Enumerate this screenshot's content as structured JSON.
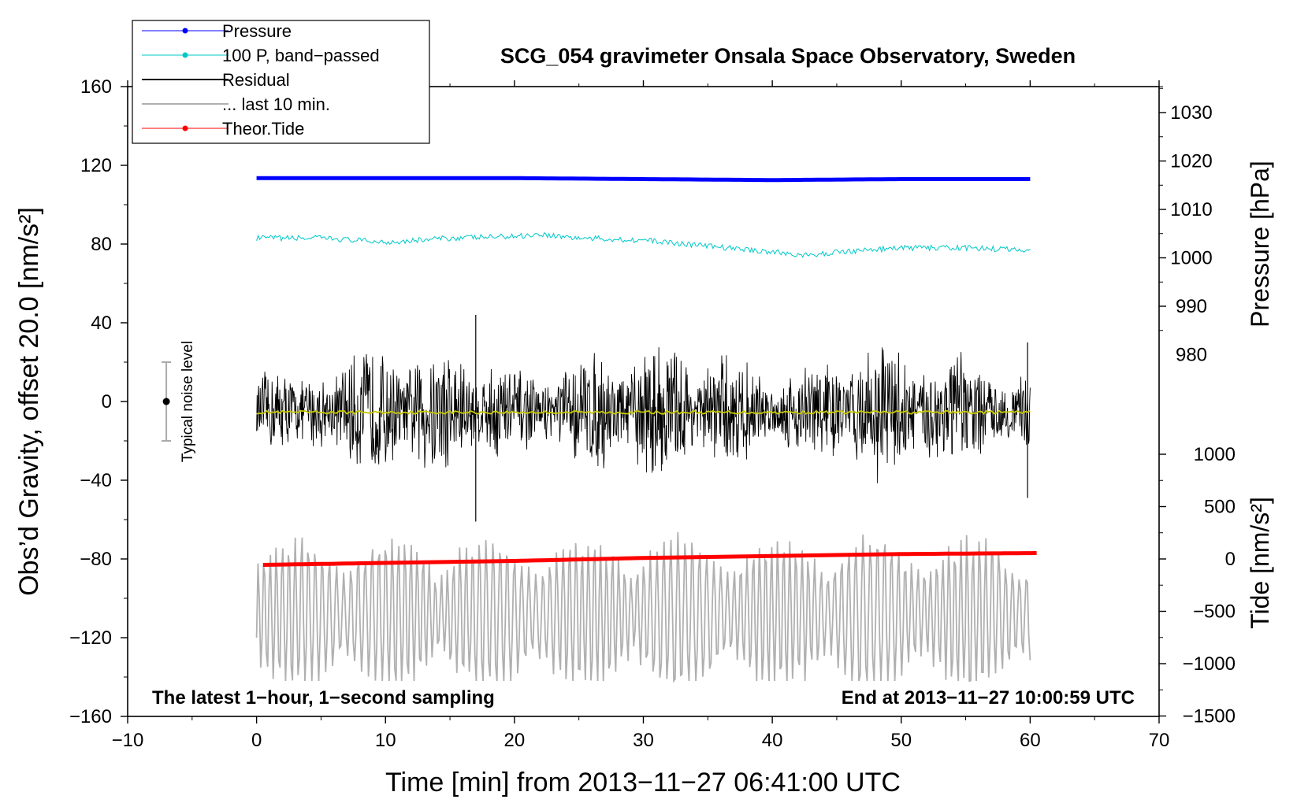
{
  "chart_data": {
    "type": "line",
    "title": "SCG_054 gravimeter Onsala Space Observatory, Sweden",
    "xlabel": "Time [min] from 2013−11−27 06:41:00 UTC",
    "ylabel_left": "Obs’d Gravity, offset 20.0 [nm/s²]",
    "ylabel_right_pressure": "Pressure [hPa]",
    "ylabel_right_tide": "Tide [nm/s²]",
    "xlim": [
      -10,
      70
    ],
    "ylim_left": [
      -160,
      160
    ],
    "x_ticks": [
      "−10",
      "0",
      "10",
      "20",
      "30",
      "40",
      "50",
      "60",
      "70"
    ],
    "x_tick_values": [
      -10,
      0,
      10,
      20,
      30,
      40,
      50,
      60,
      70
    ],
    "y_left_ticks": [
      "160",
      "120",
      "80",
      "40",
      "0",
      "−40",
      "−80",
      "−120",
      "−160"
    ],
    "y_left_tick_values": [
      160,
      120,
      80,
      40,
      0,
      -40,
      -80,
      -120,
      -160
    ],
    "pressure_ticks": [
      "1030",
      "1020",
      "1010",
      "1000",
      "990",
      "980"
    ],
    "pressure_tick_values": [
      1030,
      1020,
      1010,
      1000,
      990,
      980
    ],
    "tide_ticks": [
      "1000",
      "500",
      "0",
      "−500",
      "−1000",
      "−1500"
    ],
    "tide_tick_values": [
      1000,
      500,
      0,
      -500,
      -1000,
      -1500
    ],
    "legend": [
      {
        "label": "Pressure",
        "color": "#0000ff",
        "marker": true
      },
      {
        "label": "100 P, band−passed",
        "color": "#00c8c8",
        "marker": true
      },
      {
        "label": "Residual",
        "color": "#000000",
        "marker": false
      },
      {
        "label": "... last 10 min.",
        "color": "#b0b0b0",
        "marker": false
      },
      {
        "label": "Theor.Tide",
        "color": "#ff0000",
        "marker": true
      }
    ],
    "legend_position": "top-left",
    "annotations": {
      "noise_label": "Typical noise level",
      "bottom_left": "The latest 1−hour, 1−second sampling",
      "bottom_right": "End at 2013−11−27 10:00:59 UTC"
    },
    "noise_bar": {
      "x": -7,
      "center": 0,
      "half_range": 20
    },
    "series": [
      {
        "name": "Pressure",
        "color": "#0000ff",
        "x": [
          0,
          10,
          20,
          30,
          40,
          50,
          60
        ],
        "values": [
          113.5,
          113.5,
          113.5,
          113,
          112.5,
          113,
          113
        ]
      },
      {
        "name": "100 P, band-passed",
        "color": "#00c8c8",
        "x": [
          0,
          5,
          10,
          15,
          20,
          22,
          25,
          30,
          35,
          40,
          43,
          45,
          50,
          55,
          60
        ],
        "values": [
          83,
          83,
          81,
          83,
          84,
          85,
          83,
          82,
          79,
          76,
          74,
          76,
          78,
          78,
          77
        ]
      },
      {
        "name": "Residual",
        "color": "#000000",
        "x": [
          0,
          60
        ],
        "range": [
          -40,
          40
        ],
        "mean": -5,
        "spikes": [
          {
            "x": 17,
            "max": 44,
            "min": -61
          },
          {
            "x": 59.8,
            "max": 30,
            "min": -49
          }
        ]
      },
      {
        "name": "Residual mean",
        "color": "#c8c800",
        "x": [
          0,
          60
        ],
        "values": [
          -5.5,
          -5.5
        ]
      },
      {
        "name": "... last 10 min.",
        "color": "#b0b0b0",
        "x": [
          0,
          60
        ],
        "range": [
          -142,
          -58
        ],
        "start": -120
      },
      {
        "name": "Theor.Tide",
        "color": "#ff0000",
        "x": [
          0.5,
          10,
          20,
          30,
          40,
          50,
          60.5
        ],
        "values": [
          -83,
          -82,
          -81,
          -79.5,
          -78.5,
          -77.5,
          -77
        ]
      }
    ]
  }
}
